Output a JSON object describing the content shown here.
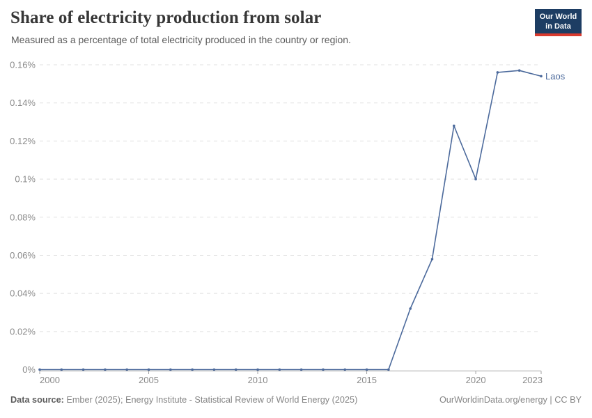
{
  "header": {
    "title": "Share of electricity production from solar",
    "subtitle": "Measured as a percentage of total electricity produced in the country or region.",
    "logo_line1": "Our World",
    "logo_line2": "in Data"
  },
  "chart_data": {
    "type": "line",
    "title": "Share of electricity production from solar",
    "subtitle": "Measured as a percentage of total electricity produced in the country or region.",
    "xlabel": "",
    "ylabel": "",
    "unit": "%",
    "xlim": [
      2000,
      2023
    ],
    "ylim": [
      0,
      0.16
    ],
    "grid": "horizontal dashed",
    "legend_position": "end-of-line label",
    "xticks": [
      2000,
      2005,
      2010,
      2015,
      2020,
      2023
    ],
    "yticks": [
      {
        "value": 0,
        "label": "0%"
      },
      {
        "value": 0.02,
        "label": "0.02%"
      },
      {
        "value": 0.04,
        "label": "0.04%"
      },
      {
        "value": 0.06,
        "label": "0.06%"
      },
      {
        "value": 0.08,
        "label": "0.08%"
      },
      {
        "value": 0.1,
        "label": "0.1%"
      },
      {
        "value": 0.12,
        "label": "0.12%"
      },
      {
        "value": 0.14,
        "label": "0.14%"
      },
      {
        "value": 0.16,
        "label": "0.16%"
      }
    ],
    "series": [
      {
        "name": "Laos",
        "color": "#4c6a9c",
        "x": [
          2000,
          2001,
          2002,
          2003,
          2004,
          2005,
          2006,
          2007,
          2008,
          2009,
          2010,
          2011,
          2012,
          2013,
          2014,
          2015,
          2016,
          2017,
          2018,
          2019,
          2020,
          2021,
          2022,
          2023
        ],
        "values": [
          0,
          0,
          0,
          0,
          0,
          0,
          0,
          0,
          0,
          0,
          0,
          0,
          0,
          0,
          0,
          0,
          0,
          0.032,
          0.058,
          0.128,
          0.1,
          0.156,
          0.157,
          0.154
        ]
      }
    ]
  },
  "footer": {
    "source_label": "Data source:",
    "source_text": " Ember (2025); Energy Institute - Statistical Review of World Energy (2025)",
    "link_energy": "OurWorldinData.org/energy",
    "separator": " | ",
    "license": "CC BY"
  },
  "colors": {
    "line": "#4c6a9c",
    "axis_text": "#8a8a8a",
    "gridline": "#e0e0e0",
    "axis_line": "#a1a1a1",
    "logo_bg": "#1d3d63",
    "logo_bar": "#d93a2e",
    "title": "#363636",
    "subtitle": "#5b5b5b"
  }
}
